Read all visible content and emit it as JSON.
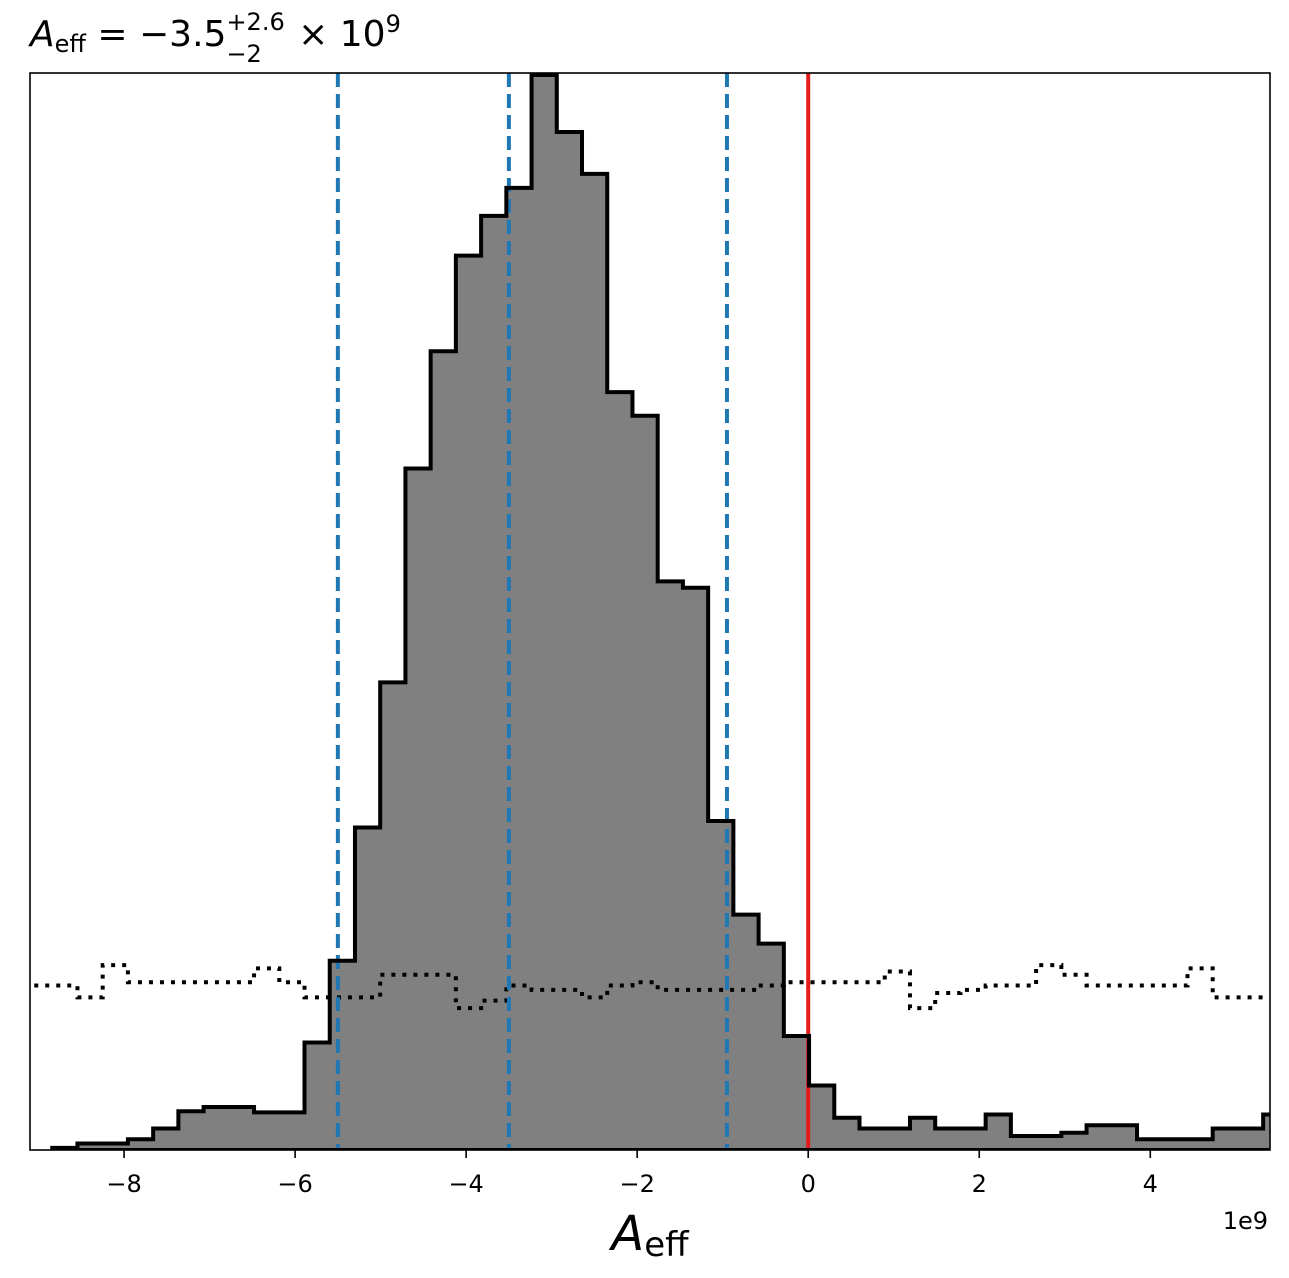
{
  "chart_data": {
    "type": "histogram",
    "title": {
      "symbol": "A",
      "subscript": "eff",
      "equals": " = ",
      "value": "−3.5",
      "sup": "+2.6",
      "sub": "−2",
      "times": " × 10",
      "exponent": "9"
    },
    "xlabel": {
      "symbol": "A",
      "subscript": "eff"
    },
    "x_offset_label": "1e9",
    "xlim": [
      -9.1,
      5.4
    ],
    "ylim": [
      0,
      1.0
    ],
    "x_ticks": [
      -8,
      -6,
      -4,
      -2,
      0,
      2,
      4
    ],
    "x_tick_labels": [
      "−8",
      "−6",
      "−4",
      "−2",
      "0",
      "2",
      "4"
    ],
    "y_ticks_shown": false,
    "bin_start": -8.84,
    "bin_width": 0.295,
    "posterior_hist": {
      "fill_color": "#808080",
      "edge_color": "#000000",
      "values": [
        0.002,
        0.006,
        0.006,
        0.01,
        0.02,
        0.036,
        0.04,
        0.04,
        0.035,
        0.035,
        0.1,
        0.176,
        0.3,
        0.435,
        0.634,
        0.743,
        0.832,
        0.869,
        0.895,
        1.0,
        0.947,
        0.908,
        0.705,
        0.683,
        0.529,
        0.523,
        0.306,
        0.219,
        0.192,
        0.106,
        0.06,
        0.03,
        0.02,
        0.02,
        0.03,
        0.02,
        0.02,
        0.033,
        0.013,
        0.013,
        0.016,
        0.023,
        0.023,
        0.01,
        0.01,
        0.01,
        0.02,
        0.02,
        0.033,
        0.033,
        0.033,
        0.016,
        0.006,
        0.006,
        0.006,
        0.006
      ]
    },
    "prior_hist": {
      "line_style": "dotted",
      "color": "#000000",
      "values": [
        0.153,
        0.142,
        0.172,
        0.156,
        0.156,
        0.156,
        0.156,
        0.156,
        0.169,
        0.156,
        0.142,
        0.142,
        0.142,
        0.163,
        0.163,
        0.163,
        0.132,
        0.139,
        0.153,
        0.149,
        0.149,
        0.142,
        0.153,
        0.156,
        0.149,
        0.149,
        0.149,
        0.149,
        0.153,
        0.156,
        0.156,
        0.156,
        0.156,
        0.166,
        0.132,
        0.146,
        0.149,
        0.153,
        0.153,
        0.172,
        0.163,
        0.153,
        0.153,
        0.153,
        0.153,
        0.169,
        0.142,
        0.142,
        0.142,
        0.153,
        0.153,
        0.153,
        0.153,
        0.153,
        0.185,
        0.185
      ]
    },
    "vlines": [
      {
        "x": -5.5,
        "color": "#1f77b4",
        "style": "dashed"
      },
      {
        "x": -3.5,
        "color": "#1f77b4",
        "style": "dashed"
      },
      {
        "x": -0.95,
        "color": "#1f77b4",
        "style": "dashed"
      },
      {
        "x": 0,
        "color": "#e41a1c",
        "style": "solid"
      }
    ]
  }
}
